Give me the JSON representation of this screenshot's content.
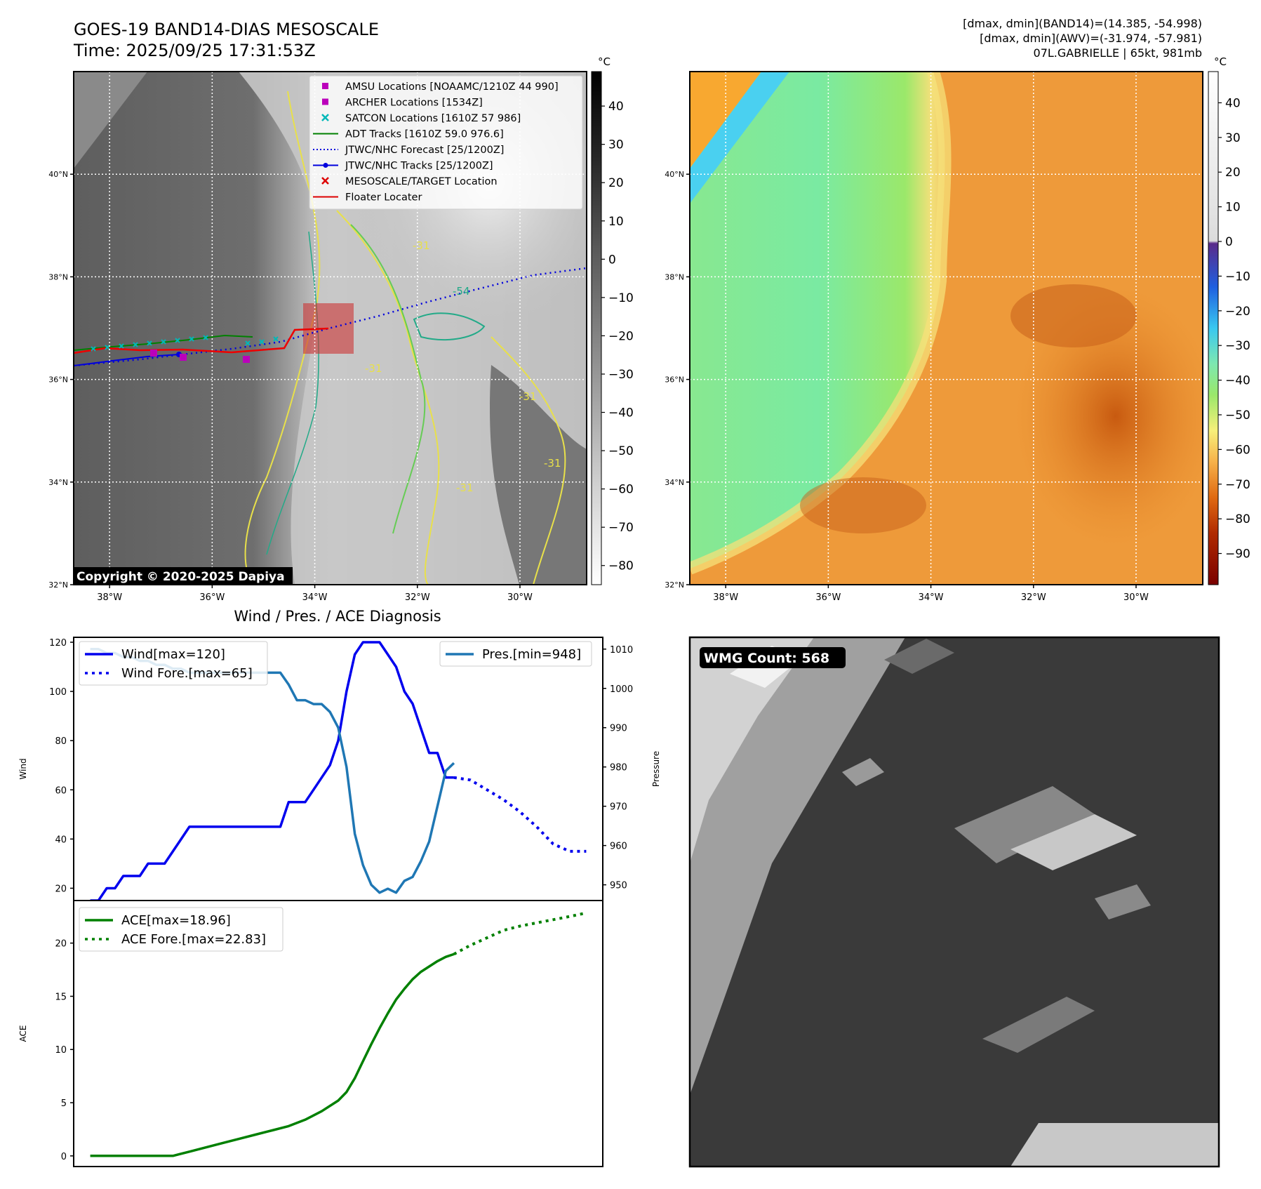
{
  "header": {
    "title_line1": "GOES-19 BAND14-DIAS MESOSCALE",
    "title_line2": "Time: 2025/09/25 17:31:53Z",
    "info_line1": "[dmax, dmin](BAND14)=(14.385, -54.998)",
    "info_line2": "[dmax, dmin](AWV)=(-31.974, -57.981)",
    "info_line3": "07L.GABRIELLE | 65kt, 981mb"
  },
  "map_axes": {
    "lat_ticks": [
      "40°N",
      "38°N",
      "36°N",
      "34°N",
      "32°N"
    ],
    "lon_ticks": [
      "38°W",
      "36°W",
      "34°W",
      "32°W",
      "30°W"
    ],
    "lat_values": [
      40,
      38,
      36,
      34,
      32
    ],
    "lon_values": [
      -38,
      -36,
      -34,
      -32,
      -30
    ],
    "lat_range": [
      32,
      42
    ],
    "lon_range": [
      -38.7,
      -28.7
    ]
  },
  "contour_labels": [
    "-31",
    "-54",
    "-31",
    "-31",
    "-31",
    "-31"
  ],
  "legend": [
    {
      "label": "AMSU Locations [NOAAMC/1210Z 44 990]",
      "marker": "square",
      "color": "#bb00bb"
    },
    {
      "label": "ARCHER Locations [1534Z]",
      "marker": "square",
      "color": "#bb00bb"
    },
    {
      "label": "SATCON Locations [1610Z 57 986]",
      "marker": "x",
      "color": "#00b8b8"
    },
    {
      "label": "ADT Tracks [1610Z 59.0 976.6]",
      "marker": "line",
      "color": "#008000"
    },
    {
      "label": "JTWC/NHC Forecast [25/1200Z]",
      "marker": "dotted",
      "color": "#0000dd"
    },
    {
      "label": "JTWC/NHC Tracks [25/1200Z]",
      "marker": "line-dot",
      "color": "#0000dd"
    },
    {
      "label": "MESOSCALE/TARGET Location",
      "marker": "x",
      "color": "#dd0000"
    },
    {
      "label": "Floater Locater",
      "marker": "line",
      "color": "#dd0000"
    }
  ],
  "copyright": "Copyright © 2020-2025 Dapiya",
  "colorbar_gray": {
    "unit": "°C",
    "ticks": [
      "40",
      "30",
      "20",
      "10",
      "0",
      "−10",
      "−20",
      "−30",
      "−40",
      "−50",
      "−60",
      "−70",
      "−80"
    ],
    "values": [
      40,
      30,
      20,
      10,
      0,
      -10,
      -20,
      -30,
      -40,
      -50,
      -60,
      -70,
      -80
    ],
    "range": [
      -85,
      49
    ]
  },
  "colorbar_color": {
    "unit": "°C",
    "ticks": [
      "40",
      "30",
      "20",
      "10",
      "0",
      "−10",
      "−20",
      "−30",
      "−40",
      "−50",
      "−60",
      "−70",
      "−80",
      "−90"
    ],
    "values": [
      40,
      30,
      20,
      10,
      0,
      -10,
      -20,
      -30,
      -40,
      -50,
      -60,
      -70,
      -80,
      -90
    ],
    "range": [
      -99,
      49
    ]
  },
  "wmg": {
    "label": "WMG Count: 568"
  },
  "chart_data": [
    {
      "type": "line",
      "title": "Wind / Pres. / ACE Diagnosis",
      "ylabel": "Wind",
      "ylabel2": "Pressure",
      "ylim": [
        15,
        122
      ],
      "ylim2": [
        946,
        1013
      ],
      "xlim": [
        -2,
        62
      ],
      "y_ticks": [
        "120",
        "100",
        "80",
        "60",
        "40",
        "20"
      ],
      "y_tick_values": [
        120,
        100,
        80,
        60,
        40,
        20
      ],
      "y2_ticks": [
        "1010",
        "1000",
        "990",
        "980",
        "970",
        "960",
        "950"
      ],
      "y2_tick_values": [
        1010,
        1000,
        990,
        980,
        970,
        960,
        950
      ],
      "series": [
        {
          "name": "Wind[max=120]",
          "style": "solid",
          "color": "#0000ee",
          "axis": "left",
          "x": [
            0,
            1,
            2,
            3,
            4,
            5,
            6,
            7,
            8,
            9,
            10,
            11,
            12,
            13,
            14,
            15,
            16,
            17,
            18,
            19,
            20,
            21,
            22,
            23,
            24,
            25,
            26,
            27,
            28,
            29,
            30,
            31,
            32,
            33,
            34,
            35,
            36,
            37,
            38,
            39,
            40,
            41,
            42,
            43,
            44
          ],
          "values": [
            15,
            15,
            20,
            20,
            25,
            25,
            25,
            30,
            30,
            30,
            35,
            40,
            45,
            45,
            45,
            45,
            45,
            45,
            45,
            45,
            45,
            45,
            45,
            45,
            55,
            55,
            55,
            60,
            65,
            70,
            80,
            100,
            115,
            120,
            120,
            120,
            115,
            110,
            100,
            95,
            85,
            75,
            75,
            65,
            65
          ]
        },
        {
          "name": "Wind Fore.[max=65]",
          "style": "dotted",
          "color": "#0000ee",
          "axis": "left",
          "x": [
            44,
            46,
            48,
            50,
            52,
            54,
            56,
            58,
            60
          ],
          "values": [
            65,
            64,
            60,
            56,
            51,
            45,
            38,
            35,
            35
          ]
        },
        {
          "name": "Pres.[min=948]",
          "style": "solid",
          "color": "#1f77b4",
          "axis": "right",
          "x": [
            0,
            1,
            2,
            3,
            4,
            5,
            6,
            7,
            8,
            9,
            10,
            11,
            12,
            13,
            14,
            15,
            16,
            17,
            18,
            19,
            20,
            21,
            22,
            23,
            24,
            25,
            26,
            27,
            28,
            29,
            30,
            31,
            32,
            33,
            34,
            35,
            36,
            37,
            38,
            39,
            40,
            41,
            42,
            43,
            44
          ],
          "values": [
            1010,
            1010,
            1009,
            1009,
            1008,
            1008,
            1007,
            1007,
            1006,
            1006,
            1005,
            1005,
            1004,
            1004,
            1004,
            1004,
            1004,
            1004,
            1004,
            1004,
            1004,
            1004,
            1004,
            1004,
            1001,
            997,
            997,
            996,
            996,
            994,
            990,
            980,
            963,
            955,
            950,
            948,
            949,
            948,
            951,
            952,
            956,
            961,
            970,
            979,
            981
          ]
        }
      ]
    },
    {
      "type": "line",
      "ylabel": "ACE",
      "ylim": [
        -1,
        24
      ],
      "xlim": [
        -2,
        62
      ],
      "y_ticks": [
        "20",
        "15",
        "10",
        "5",
        "0"
      ],
      "y_tick_values": [
        20,
        15,
        10,
        5,
        0
      ],
      "series": [
        {
          "name": "ACE[max=18.96]",
          "style": "solid",
          "color": "#008000",
          "x": [
            0,
            2,
            4,
            6,
            8,
            10,
            12,
            14,
            16,
            18,
            20,
            22,
            24,
            26,
            28,
            30,
            31,
            32,
            33,
            34,
            35,
            36,
            37,
            38,
            39,
            40,
            41,
            42,
            43,
            44
          ],
          "values": [
            0,
            0,
            0,
            0,
            0,
            0,
            0.4,
            0.8,
            1.2,
            1.6,
            2.0,
            2.4,
            2.8,
            3.4,
            4.2,
            5.2,
            6.0,
            7.3,
            8.9,
            10.5,
            12.0,
            13.4,
            14.7,
            15.7,
            16.6,
            17.3,
            17.8,
            18.3,
            18.7,
            18.96
          ]
        },
        {
          "name": "ACE Fore.[max=22.83]",
          "style": "dotted",
          "color": "#008000",
          "x": [
            44,
            46,
            48,
            50,
            52,
            54,
            56,
            58,
            60
          ],
          "values": [
            18.96,
            19.8,
            20.5,
            21.2,
            21.6,
            21.9,
            22.2,
            22.5,
            22.83
          ]
        }
      ]
    }
  ]
}
